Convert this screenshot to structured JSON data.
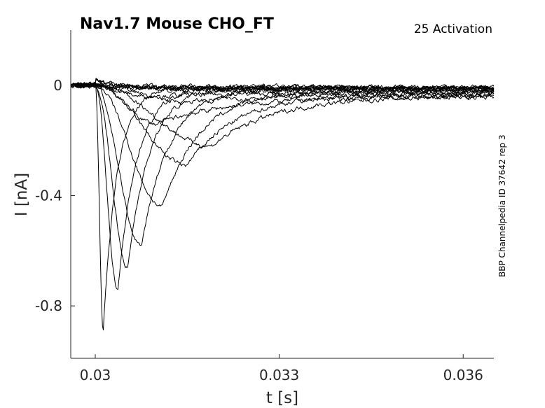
{
  "chart_data": {
    "type": "line",
    "title": "Nav1.7  Mouse  CHO_FT",
    "annotation": "25  Activation",
    "side_label": "BBP Channelpedia ID 37642 rep 3",
    "xlabel": "t [s]",
    "ylabel": "I [nA]",
    "xlim": [
      0.0296,
      0.0365
    ],
    "ylim": [
      -0.99,
      0.2
    ],
    "xticks": [
      0.03,
      0.033,
      0.036
    ],
    "xtick_labels": [
      "0.03",
      "0.033",
      "0.036"
    ],
    "yticks": [
      0,
      -0.4,
      -0.8
    ],
    "ytick_labels": [
      "0",
      "-0.4",
      "-0.8"
    ],
    "grid": false,
    "legend": "none",
    "stimulus_onset": 0.03,
    "trace_end": 0.0365,
    "series_count": 16,
    "series": [
      {
        "peak": 0.0,
        "peak_time": 0.0,
        "tau_decay": 0.0012,
        "final": -0.01
      },
      {
        "peak": 0.0,
        "peak_time": 0.0,
        "tau_decay": 0.0012,
        "final": -0.012
      },
      {
        "peak": 0.0,
        "peak_time": 0.0,
        "tau_decay": 0.0012,
        "final": -0.015
      },
      {
        "peak": 0.0,
        "peak_time": 0.0,
        "tau_decay": 0.0012,
        "final": -0.02
      },
      {
        "peak": 0.0,
        "peak_time": 0.0,
        "tau_decay": 0.0012,
        "final": -0.008
      },
      {
        "peak": 0.0,
        "peak_time": 0.0,
        "tau_decay": 0.0012,
        "final": -0.025
      },
      {
        "peak": -0.04,
        "peak_time": 0.0308,
        "tau_decay": 0.0011,
        "final": -0.03
      },
      {
        "peak": -0.06,
        "peak_time": 0.0315,
        "tau_decay": 0.0012,
        "final": -0.035
      },
      {
        "peak": -0.14,
        "peak_time": 0.031,
        "tau_decay": 0.0012,
        "final": -0.04
      },
      {
        "peak": -0.22,
        "peak_time": 0.0319,
        "tau_decay": 0.001,
        "final": -0.04
      },
      {
        "peak": -0.29,
        "peak_time": 0.0315,
        "tau_decay": 0.0008,
        "final": -0.03
      },
      {
        "peak": -0.44,
        "peak_time": 0.0311,
        "tau_decay": 0.0006,
        "final": -0.02
      },
      {
        "peak": -0.58,
        "peak_time": 0.03075,
        "tau_decay": 0.00045,
        "final": -0.01
      },
      {
        "peak": -0.66,
        "peak_time": 0.03053,
        "tau_decay": 0.00035,
        "final": -0.01
      },
      {
        "peak": -0.74,
        "peak_time": 0.03037,
        "tau_decay": 0.0003,
        "final": -0.01
      },
      {
        "peak": -0.89,
        "peak_time": 0.03013,
        "tau_decay": 0.00022,
        "final": -0.01
      }
    ]
  }
}
